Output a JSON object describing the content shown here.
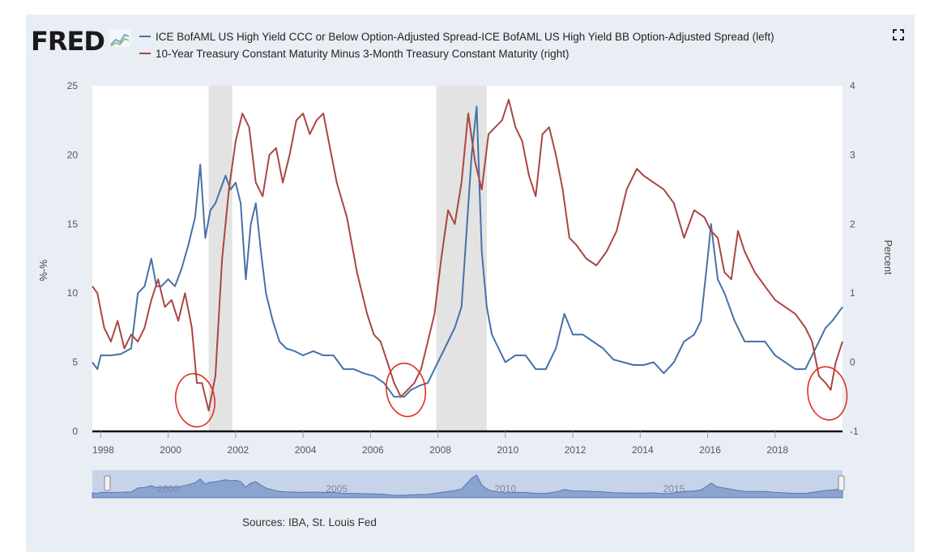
{
  "logo": {
    "text": "FRED",
    "icon": "line-chart-icon"
  },
  "legend": [
    {
      "name": "ICE BofAML US High Yield CCC or Below Option-Adjusted Spread-ICE BofAML US High Yield BB Option-Adjusted Spread (left)",
      "color": "#4572a7"
    },
    {
      "name": "10-Year Treasury Constant Maturity Minus 3-Month Treasury Constant Maturity (right)",
      "color": "#aa4643"
    }
  ],
  "sources": "Sources: IBA, St. Louis Fed",
  "fullscreen_icon": "fullscreen-icon",
  "chart_data": {
    "type": "line",
    "left_axis": {
      "title": "%-%",
      "ticks": [
        0,
        5,
        10,
        15,
        20,
        25
      ],
      "ylim": [
        0,
        25
      ]
    },
    "right_axis": {
      "title": "Percent",
      "ticks": [
        -1,
        0,
        1,
        2,
        3,
        4
      ],
      "ylim": [
        -1,
        4
      ]
    },
    "x_axis": {
      "ticks": [
        "1998",
        "2000",
        "2002",
        "2004",
        "2006",
        "2008",
        "2010",
        "2012",
        "2014",
        "2016",
        "2018"
      ],
      "xlim": [
        1997.75,
        2020.0
      ]
    },
    "recessions": [
      [
        2001.2,
        2001.9
      ],
      [
        2007.95,
        2009.45
      ]
    ],
    "navigator": {
      "labels": [
        "2000",
        "2005",
        "2010",
        "2015"
      ]
    },
    "annotations": [
      {
        "type": "circle",
        "label": "red hand-drawn circle",
        "x": 2000.8,
        "y_right": -0.55
      },
      {
        "type": "circle",
        "label": "red hand-drawn circle",
        "x": 2007.05,
        "y_right": -0.4
      },
      {
        "type": "circle",
        "label": "red hand-drawn circle",
        "x": 2019.55,
        "y_right": -0.45
      }
    ],
    "series": [
      {
        "name": "ICE BofAML US High Yield CCC or Below Option-Adjusted Spread-ICE BofAML US High Yield BB Option-Adjusted Spread (left)",
        "axis": "left",
        "color": "#4572a7",
        "x": [
          1997.75,
          1997.9,
          1998.0,
          1998.3,
          1998.6,
          1998.9,
          1999.1,
          1999.3,
          1999.5,
          1999.65,
          1999.8,
          2000.0,
          2000.2,
          2000.4,
          2000.6,
          2000.8,
          2000.95,
          2001.1,
          2001.25,
          2001.4,
          2001.55,
          2001.7,
          2001.85,
          2002.0,
          2002.15,
          2002.3,
          2002.45,
          2002.6,
          2002.75,
          2002.9,
          2003.1,
          2003.3,
          2003.5,
          2003.75,
          2004.0,
          2004.3,
          2004.6,
          2004.9,
          2005.2,
          2005.5,
          2005.8,
          2006.1,
          2006.4,
          2006.7,
          2007.0,
          2007.2,
          2007.45,
          2007.7,
          2007.9,
          2008.1,
          2008.3,
          2008.5,
          2008.7,
          2008.85,
          2009.0,
          2009.15,
          2009.3,
          2009.45,
          2009.6,
          2009.8,
          2010.0,
          2010.3,
          2010.6,
          2010.9,
          2011.2,
          2011.5,
          2011.75,
          2012.0,
          2012.3,
          2012.6,
          2012.9,
          2013.2,
          2013.5,
          2013.8,
          2014.1,
          2014.4,
          2014.7,
          2015.0,
          2015.3,
          2015.6,
          2015.8,
          2016.0,
          2016.1,
          2016.3,
          2016.5,
          2016.8,
          2017.1,
          2017.4,
          2017.7,
          2018.0,
          2018.3,
          2018.6,
          2018.9,
          2019.1,
          2019.3,
          2019.5,
          2019.7,
          2019.85,
          2020.0
        ],
        "values": [
          5.0,
          4.5,
          5.5,
          5.5,
          5.6,
          6.0,
          10.0,
          10.5,
          12.5,
          10.5,
          10.5,
          11.0,
          10.5,
          11.8,
          13.5,
          15.5,
          19.3,
          14.0,
          16.0,
          16.5,
          17.5,
          18.5,
          17.5,
          18.0,
          16.5,
          11.0,
          15.0,
          16.5,
          13.0,
          10.0,
          8.0,
          6.5,
          6.0,
          5.8,
          5.5,
          5.8,
          5.5,
          5.5,
          4.5,
          4.5,
          4.2,
          4.0,
          3.5,
          2.5,
          2.5,
          3.0,
          3.3,
          3.5,
          4.5,
          5.5,
          6.5,
          7.5,
          9.0,
          14.5,
          20.0,
          23.5,
          13.0,
          9.0,
          7.0,
          6.0,
          5.0,
          5.5,
          5.5,
          4.5,
          4.5,
          6.0,
          8.5,
          7.0,
          7.0,
          6.5,
          6.0,
          5.2,
          5.0,
          4.8,
          4.8,
          5.0,
          4.2,
          5.0,
          6.5,
          7.0,
          8.0,
          12.5,
          15.0,
          11.0,
          10.0,
          8.0,
          6.5,
          6.5,
          6.5,
          5.5,
          5.0,
          4.5,
          4.5,
          5.5,
          6.5,
          7.5,
          8.0,
          8.5,
          9.0
        ]
      },
      {
        "name": "10-Year Treasury Constant Maturity Minus 3-Month Treasury Constant Maturity (right)",
        "axis": "right",
        "color": "#aa4643",
        "x": [
          1997.75,
          1997.9,
          1998.1,
          1998.3,
          1998.5,
          1998.7,
          1998.9,
          1999.1,
          1999.3,
          1999.5,
          1999.7,
          1999.9,
          2000.1,
          2000.3,
          2000.5,
          2000.7,
          2000.85,
          2001.0,
          2001.2,
          2001.4,
          2001.6,
          2001.8,
          2002.0,
          2002.2,
          2002.4,
          2002.6,
          2002.8,
          2003.0,
          2003.2,
          2003.4,
          2003.6,
          2003.8,
          2004.0,
          2004.2,
          2004.4,
          2004.6,
          2004.8,
          2005.0,
          2005.3,
          2005.6,
          2005.9,
          2006.1,
          2006.3,
          2006.5,
          2006.7,
          2006.9,
          2007.1,
          2007.3,
          2007.5,
          2007.7,
          2007.9,
          2008.1,
          2008.3,
          2008.5,
          2008.7,
          2008.9,
          2009.1,
          2009.3,
          2009.5,
          2009.7,
          2009.9,
          2010.1,
          2010.3,
          2010.5,
          2010.7,
          2010.9,
          2011.1,
          2011.3,
          2011.5,
          2011.7,
          2011.9,
          2012.1,
          2012.4,
          2012.7,
          2013.0,
          2013.3,
          2013.6,
          2013.9,
          2014.1,
          2014.4,
          2014.7,
          2015.0,
          2015.3,
          2015.6,
          2015.9,
          2016.1,
          2016.3,
          2016.5,
          2016.7,
          2016.9,
          2017.1,
          2017.4,
          2017.7,
          2018.0,
          2018.3,
          2018.6,
          2018.9,
          2019.1,
          2019.3,
          2019.5,
          2019.65,
          2019.8,
          2020.0
        ],
        "values": [
          1.1,
          1.0,
          0.5,
          0.3,
          0.6,
          0.2,
          0.4,
          0.3,
          0.5,
          0.9,
          1.2,
          0.8,
          0.9,
          0.6,
          1.0,
          0.5,
          -0.3,
          -0.3,
          -0.7,
          -0.2,
          1.5,
          2.5,
          3.2,
          3.6,
          3.4,
          2.6,
          2.4,
          3.0,
          3.1,
          2.6,
          3.0,
          3.5,
          3.6,
          3.3,
          3.5,
          3.6,
          3.1,
          2.6,
          2.1,
          1.3,
          0.7,
          0.4,
          0.3,
          0.0,
          -0.3,
          -0.5,
          -0.4,
          -0.3,
          -0.1,
          0.3,
          0.7,
          1.5,
          2.2,
          2.0,
          2.6,
          3.6,
          2.9,
          2.5,
          3.3,
          3.4,
          3.5,
          3.8,
          3.4,
          3.2,
          2.7,
          2.4,
          3.3,
          3.4,
          3.0,
          2.5,
          1.8,
          1.7,
          1.5,
          1.4,
          1.6,
          1.9,
          2.5,
          2.8,
          2.7,
          2.6,
          2.5,
          2.3,
          1.8,
          2.2,
          2.1,
          1.9,
          1.8,
          1.3,
          1.2,
          1.9,
          1.6,
          1.3,
          1.1,
          0.9,
          0.8,
          0.7,
          0.5,
          0.3,
          -0.2,
          -0.3,
          -0.4,
          0.0,
          0.3
        ]
      }
    ]
  }
}
